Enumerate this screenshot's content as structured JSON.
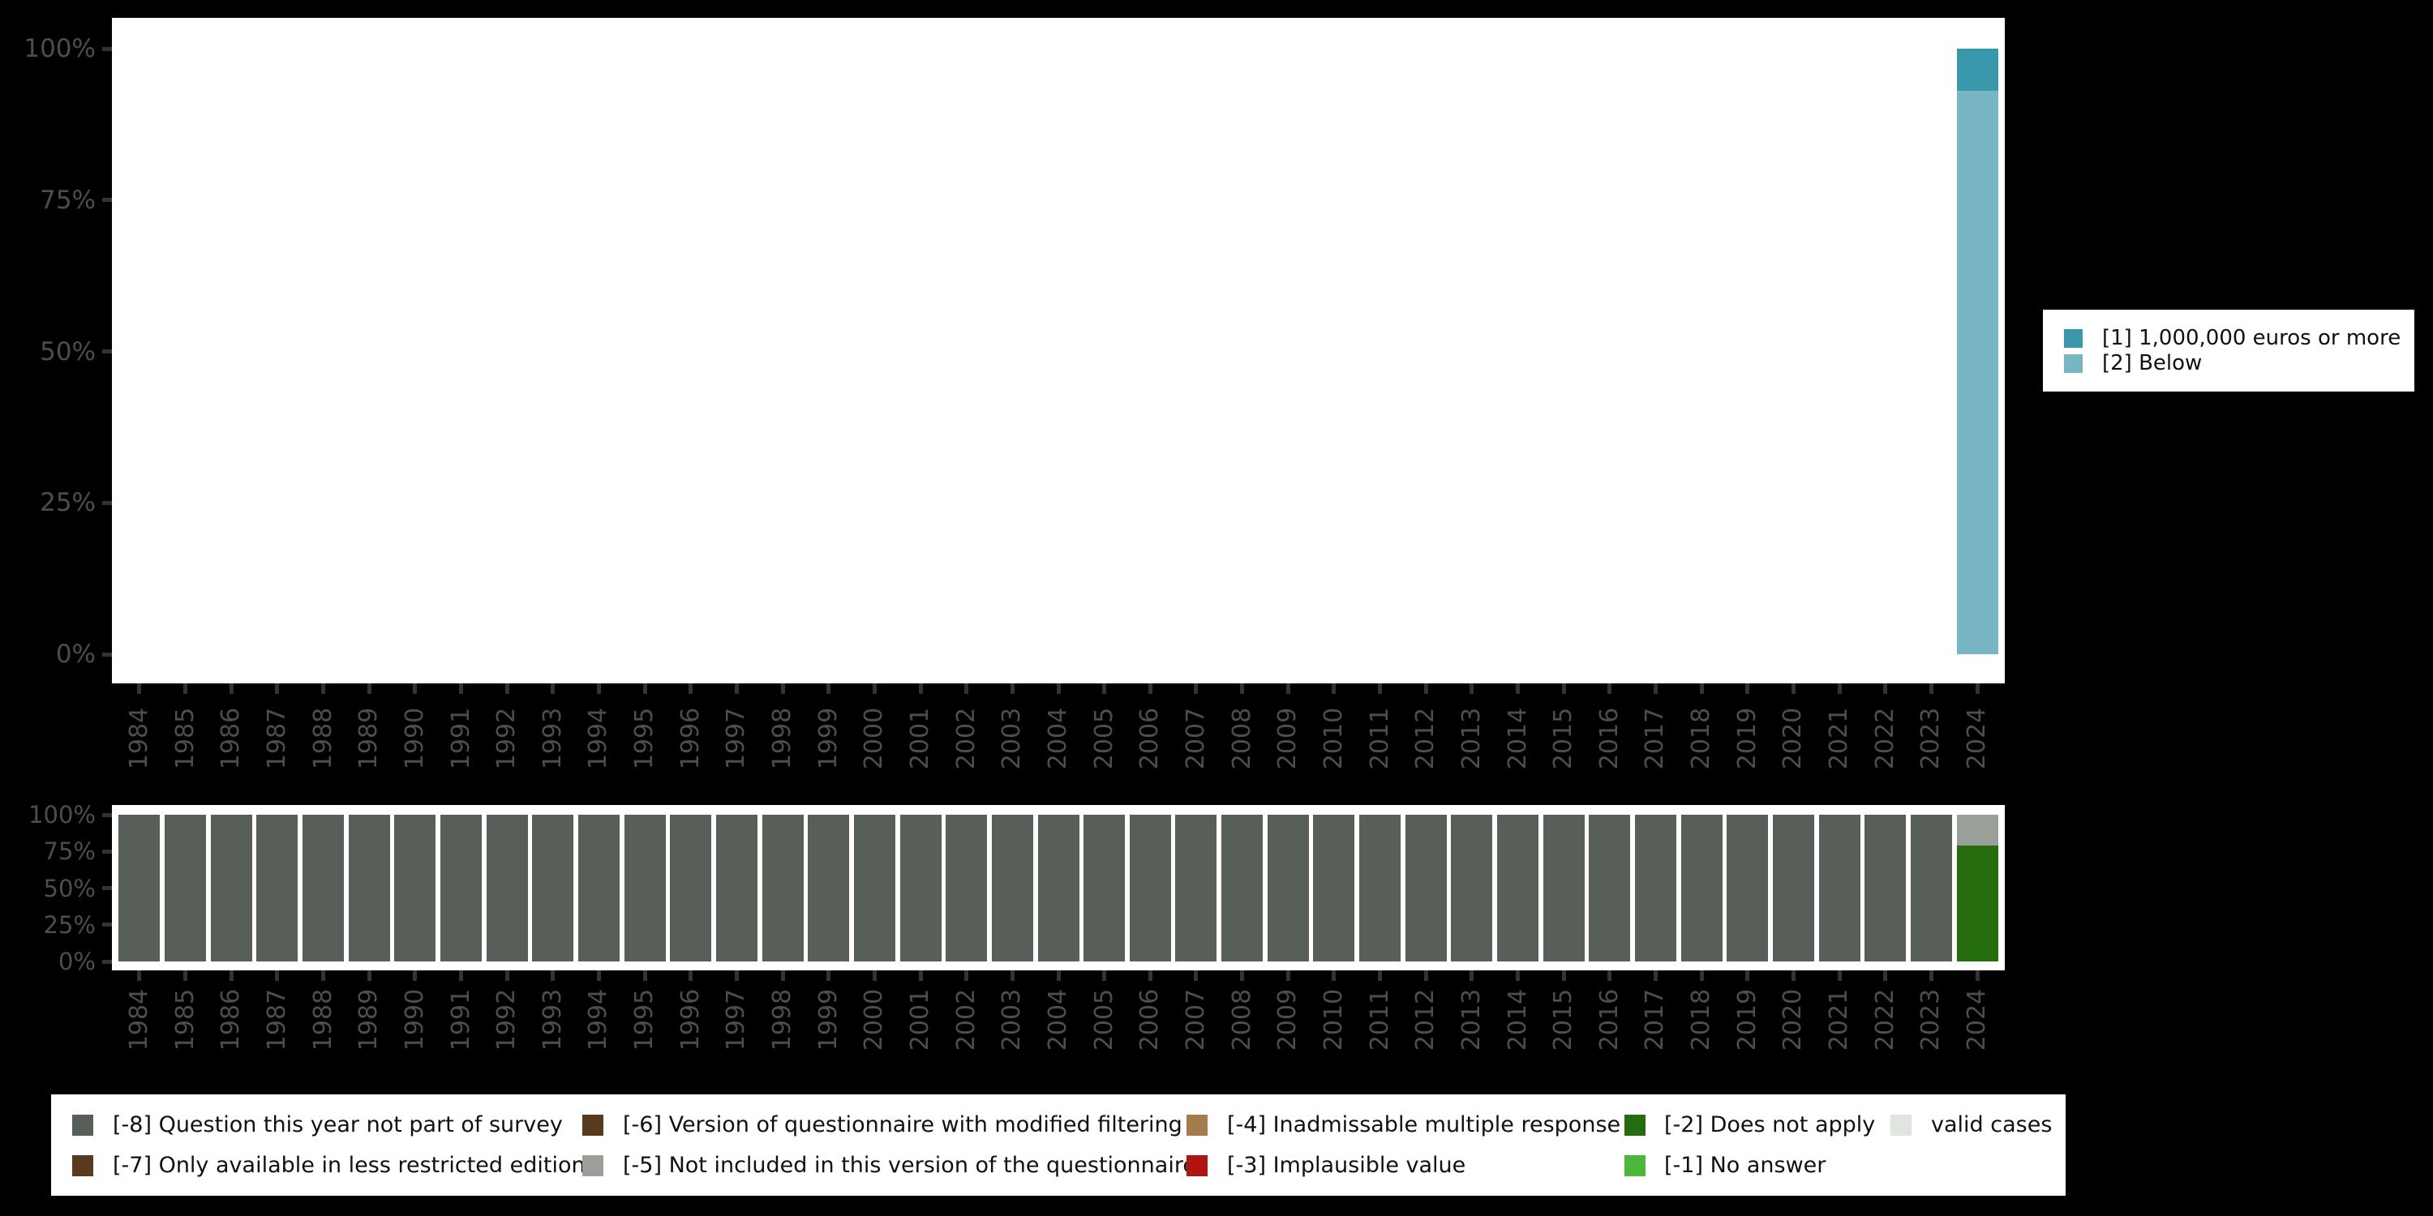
{
  "background": "#000000",
  "axis": {
    "text_color": "#4d4d4d",
    "tick_color": "#333333"
  },
  "years": [
    "1984",
    "1985",
    "1986",
    "1987",
    "1988",
    "1989",
    "1990",
    "1991",
    "1992",
    "1993",
    "1994",
    "1995",
    "1996",
    "1997",
    "1998",
    "1999",
    "2000",
    "2001",
    "2002",
    "2003",
    "2004",
    "2005",
    "2006",
    "2007",
    "2008",
    "2009",
    "2010",
    "2011",
    "2012",
    "2013",
    "2014",
    "2015",
    "2016",
    "2017",
    "2018",
    "2019",
    "2020",
    "2021",
    "2022",
    "2023",
    "2024"
  ],
  "y_ticks": {
    "labels": [
      "100%",
      "75%",
      "50%",
      "25%",
      "0%"
    ],
    "values": [
      100,
      75,
      50,
      25,
      0
    ]
  },
  "chart_data": [
    {
      "id": "category-distribution",
      "type": "bar",
      "stacked": true,
      "title": "",
      "xlabel": "",
      "ylabel": "",
      "ylim": [
        0,
        100
      ],
      "grid": false,
      "legend_position": "right",
      "categories_key": "years",
      "series": [
        {
          "name": "[1] 1,000,000 euros or more",
          "color": "#3a98ad",
          "values": [
            0,
            0,
            0,
            0,
            0,
            0,
            0,
            0,
            0,
            0,
            0,
            0,
            0,
            0,
            0,
            0,
            0,
            0,
            0,
            0,
            0,
            0,
            0,
            0,
            0,
            0,
            0,
            0,
            0,
            0,
            0,
            0,
            0,
            0,
            0,
            0,
            0,
            0,
            0,
            0,
            7
          ]
        },
        {
          "name": "[2] Below",
          "color": "#79b6c4",
          "values": [
            0,
            0,
            0,
            0,
            0,
            0,
            0,
            0,
            0,
            0,
            0,
            0,
            0,
            0,
            0,
            0,
            0,
            0,
            0,
            0,
            0,
            0,
            0,
            0,
            0,
            0,
            0,
            0,
            0,
            0,
            0,
            0,
            0,
            0,
            0,
            0,
            0,
            0,
            0,
            0,
            93
          ]
        }
      ]
    },
    {
      "id": "missing-values-distribution",
      "type": "bar",
      "stacked": true,
      "title": "",
      "xlabel": "",
      "ylabel": "",
      "ylim": [
        0,
        100
      ],
      "grid": false,
      "legend_position": "bottom",
      "categories_key": "years",
      "series": [
        {
          "name": "[-8] Question this year not part of survey",
          "color": "#575f58",
          "values": [
            100,
            100,
            100,
            100,
            100,
            100,
            100,
            100,
            100,
            100,
            100,
            100,
            100,
            100,
            100,
            100,
            100,
            100,
            100,
            100,
            100,
            100,
            100,
            100,
            100,
            100,
            100,
            100,
            100,
            100,
            100,
            100,
            100,
            100,
            100,
            100,
            100,
            100,
            100,
            100,
            0
          ]
        },
        {
          "name": "[-5] Not included in this version of the questionnaire",
          "color": "#9aa098",
          "values": [
            0,
            0,
            0,
            0,
            0,
            0,
            0,
            0,
            0,
            0,
            0,
            0,
            0,
            0,
            0,
            0,
            0,
            0,
            0,
            0,
            0,
            0,
            0,
            0,
            0,
            0,
            0,
            0,
            0,
            0,
            0,
            0,
            0,
            0,
            0,
            0,
            0,
            0,
            0,
            0,
            21
          ]
        },
        {
          "name": "[-2] Does not apply",
          "color": "#256c0e",
          "values": [
            0,
            0,
            0,
            0,
            0,
            0,
            0,
            0,
            0,
            0,
            0,
            0,
            0,
            0,
            0,
            0,
            0,
            0,
            0,
            0,
            0,
            0,
            0,
            0,
            0,
            0,
            0,
            0,
            0,
            0,
            0,
            0,
            0,
            0,
            0,
            0,
            0,
            0,
            0,
            0,
            79
          ]
        }
      ]
    }
  ],
  "legend_right": {
    "items": [
      {
        "label": "[1] 1,000,000 euros or more",
        "color": "#3a98ad"
      },
      {
        "label": "[2] Below",
        "color": "#79b6c4"
      }
    ]
  },
  "legend_bottom": {
    "columns": [
      {
        "items": [
          {
            "label": "[-8] Question this year not part of survey",
            "color": "#575f58"
          },
          {
            "label": "[-7] Only available in less restricted edition",
            "color": "#5a3a1e"
          }
        ]
      },
      {
        "items": [
          {
            "label": "[-6] Version of questionnaire with modified filtering",
            "color": "#5a3a1e"
          },
          {
            "label": "[-5] Not included in this version of the questionnaire",
            "color": "#9aa098"
          }
        ]
      },
      {
        "items": [
          {
            "label": "[-4] Inadmissable multiple response",
            "color": "#a57b4c"
          },
          {
            "label": "[-3] Implausible value",
            "color": "#b0140f"
          }
        ]
      },
      {
        "items": [
          {
            "label": "[-2] Does not apply",
            "color": "#256c0e"
          },
          {
            "label": "[-1] No answer",
            "color": "#4cb83a"
          }
        ]
      },
      {
        "items": [
          {
            "label": "valid cases",
            "color": "#e1e5e0"
          }
        ]
      }
    ]
  }
}
